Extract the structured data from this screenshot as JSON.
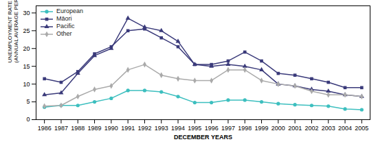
{
  "chart_data": {
    "type": "line",
    "xlabel": "DECEMBER YEARS",
    "ylabel": "UNEMPLOYMENT RATE\n(ANNUAL AVERAGE PERCENT)",
    "x": [
      1986,
      1987,
      1988,
      1989,
      1990,
      1991,
      1992,
      1993,
      1994,
      1995,
      1996,
      1997,
      1998,
      1999,
      2000,
      2001,
      2002,
      2003,
      2004,
      2005
    ],
    "series": [
      {
        "name": "European",
        "color": "#3dbfbf",
        "marker": "circle",
        "values": [
          3.5,
          4.0,
          4.0,
          5.0,
          6.0,
          8.2,
          8.2,
          7.8,
          6.5,
          4.8,
          4.8,
          5.5,
          5.5,
          5.0,
          4.5,
          4.2,
          4.0,
          3.8,
          3.0,
          2.8
        ]
      },
      {
        "name": "Māori",
        "color": "#3a3a7a",
        "marker": "square",
        "values": [
          11.5,
          10.5,
          13.5,
          18.5,
          20.5,
          25.0,
          25.5,
          23.0,
          20.5,
          15.5,
          15.5,
          16.5,
          19.0,
          16.5,
          13.0,
          12.5,
          11.5,
          10.5,
          9.0,
          9.0
        ]
      },
      {
        "name": "Pacific",
        "color": "#3a3a7a",
        "marker": "triangle",
        "values": [
          7.0,
          7.5,
          13.0,
          18.0,
          20.0,
          28.5,
          26.0,
          25.0,
          22.0,
          15.5,
          15.0,
          15.5,
          15.0,
          14.0,
          10.0,
          9.5,
          8.5,
          8.0,
          7.0,
          6.5
        ]
      },
      {
        "name": "Other",
        "color": "#aaaaaa",
        "marker": "diamond",
        "values": [
          3.8,
          4.0,
          6.5,
          8.5,
          9.5,
          14.0,
          15.5,
          12.5,
          11.5,
          11.0,
          11.0,
          14.0,
          14.0,
          11.0,
          10.0,
          9.5,
          8.0,
          7.0,
          7.0,
          6.5
        ]
      }
    ],
    "xlim": [
      1985.5,
      2005.5
    ],
    "xticks": [
      1986,
      1987,
      1988,
      1989,
      1990,
      1991,
      1992,
      1993,
      1994,
      1995,
      1996,
      1997,
      1998,
      1999,
      2000,
      2001,
      2002,
      2003,
      2004,
      2005
    ],
    "ylim": [
      0,
      32
    ],
    "yticks": [
      0,
      5,
      10,
      15,
      20,
      25,
      30
    ],
    "legend": "upper left"
  }
}
